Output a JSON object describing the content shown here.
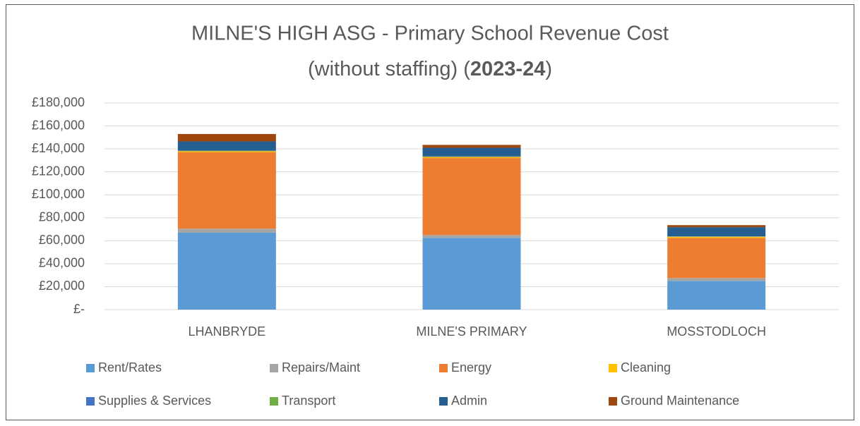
{
  "chart_data": {
    "type": "stacked_bar",
    "title": [
      "MILNE'S HIGH ASG - Primary School Revenue Cost",
      "(without staffing) (",
      "2023-24",
      ")"
    ],
    "categories": [
      "LHANBRYDE",
      "MILNE'S PRIMARY",
      "MOSSTODLOCH"
    ],
    "series": [
      {
        "name": "Rent/Rates",
        "color": "#5b9bd5",
        "values": [
          67000,
          62500,
          25000
        ]
      },
      {
        "name": "Repairs/Maint",
        "color": "#a5a5a5",
        "values": [
          3500,
          2500,
          2500
        ]
      },
      {
        "name": "Energy",
        "color": "#ed7d31",
        "values": [
          66500,
          67000,
          35000
        ]
      },
      {
        "name": "Cleaning",
        "color": "#ffc000",
        "values": [
          1000,
          1000,
          1000
        ]
      },
      {
        "name": "Supplies & Services",
        "color": "#4472c4",
        "values": [
          300,
          300,
          200
        ]
      },
      {
        "name": "Transport",
        "color": "#70ad47",
        "values": [
          200,
          200,
          100
        ]
      },
      {
        "name": "Admin",
        "color": "#255e91",
        "values": [
          8000,
          7500,
          8000
        ]
      },
      {
        "name": "Ground Maintenance",
        "color": "#9e480e",
        "values": [
          6500,
          2500,
          1800
        ]
      }
    ],
    "ylim": [
      0,
      180000
    ],
    "yticks": [
      {
        "value": 0,
        "label": "£-"
      },
      {
        "value": 20000,
        "label": "£20,000"
      },
      {
        "value": 40000,
        "label": "£40,000"
      },
      {
        "value": 60000,
        "label": "£60,000"
      },
      {
        "value": 80000,
        "label": "£80,000"
      },
      {
        "value": 100000,
        "label": "£100,000"
      },
      {
        "value": 120000,
        "label": "£120,000"
      },
      {
        "value": 140000,
        "label": "£140,000"
      },
      {
        "value": 160000,
        "label": "£160,000"
      },
      {
        "value": 180000,
        "label": "£180,000"
      }
    ],
    "grid": true,
    "legend": "bottom"
  }
}
